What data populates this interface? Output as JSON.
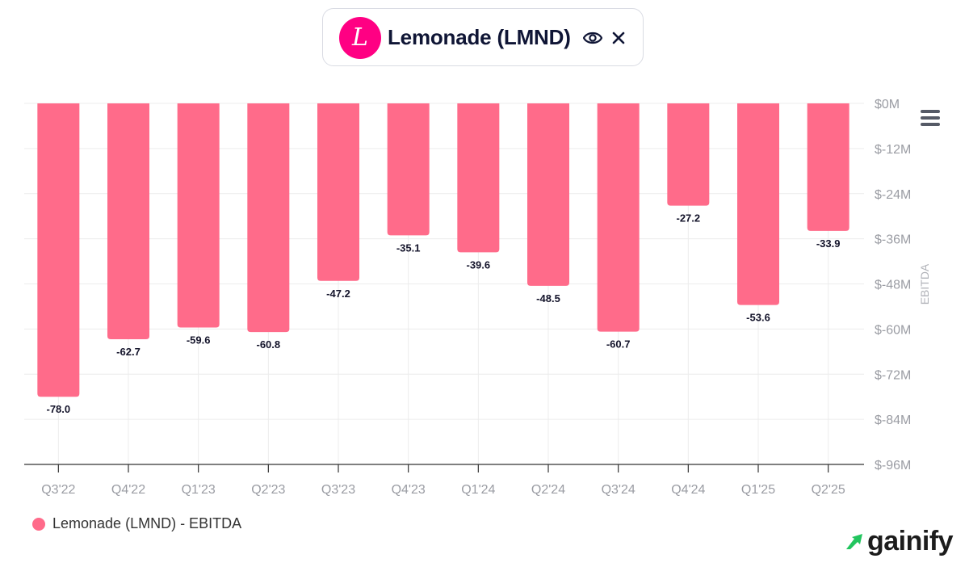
{
  "header": {
    "logo_letter": "L",
    "title": "Lemonade (LMND)",
    "eye_icon": "eye-icon",
    "close_icon": "close-icon"
  },
  "colors": {
    "bar": "#ff6b8a",
    "logo_bg": "#ff0083",
    "grid": "#ececec",
    "axis": "#333333",
    "brand_green": "#22c55e"
  },
  "chart_data": {
    "type": "bar",
    "title": "",
    "xlabel": "",
    "ylabel": "EBITDA",
    "ylim": [
      -96,
      0
    ],
    "y_ticks": [
      0,
      -12,
      -24,
      -36,
      -48,
      -60,
      -72,
      -84,
      -96
    ],
    "y_tick_labels": [
      "$0M",
      "$-12M",
      "$-24M",
      "$-36M",
      "$-48M",
      "$-60M",
      "$-72M",
      "$-84M",
      "$-96M"
    ],
    "y_axis_side": "right",
    "categories": [
      "Q3'22",
      "Q4'22",
      "Q1'23",
      "Q2'23",
      "Q3'23",
      "Q4'23",
      "Q1'24",
      "Q2'24",
      "Q3'24",
      "Q4'24",
      "Q1'25",
      "Q2'25"
    ],
    "series": [
      {
        "name": "Lemonade (LMND) - EBITDA",
        "values": [
          -78.0,
          -62.7,
          -59.6,
          -60.8,
          -47.2,
          -35.1,
          -39.6,
          -48.5,
          -60.7,
          -27.2,
          -53.6,
          -33.9
        ],
        "labels": [
          "-78.0",
          "-62.7",
          "-59.6",
          "-60.8",
          "-47.2",
          "-35.1",
          "-39.6",
          "-48.5",
          "-60.7",
          "-27.2",
          "-53.6",
          "-33.9"
        ]
      }
    ],
    "grid": true,
    "legend": "bottom-left"
  },
  "menu": {
    "icon": "hamburger-menu-icon"
  },
  "legend": {
    "label": "Lemonade (LMND) - EBITDA"
  },
  "brand": {
    "name": "gainify",
    "icon": "gainify-logo-icon"
  }
}
